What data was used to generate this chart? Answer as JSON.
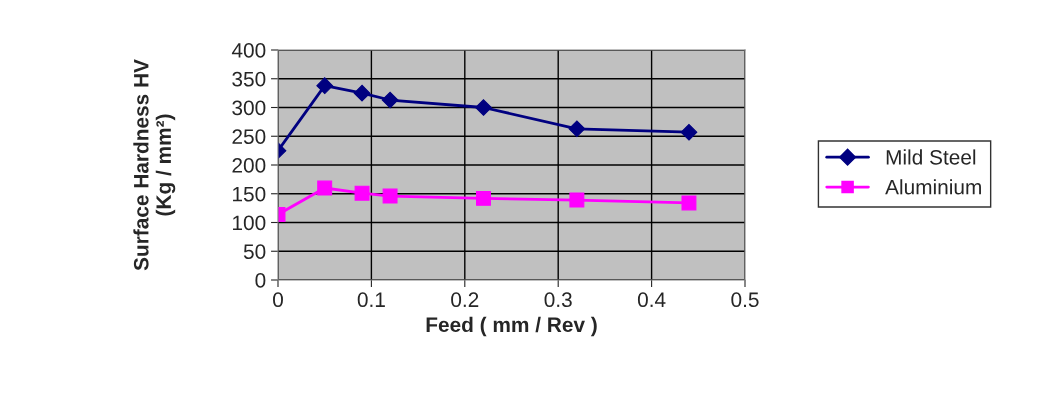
{
  "chart_data": {
    "type": "line",
    "xlabel": "Feed ( mm / Rev )",
    "ylabel": "Surface Hardness HV\n(Kg / mm²)",
    "x": [
      0,
      0.05,
      0.09,
      0.12,
      0.22,
      0.32,
      0.44
    ],
    "series": [
      {
        "name": "Mild Steel",
        "color": "#000080",
        "marker": "diamond",
        "values": [
          225,
          338,
          325,
          313,
          300,
          263,
          257
        ]
      },
      {
        "name": "Aluminium",
        "color": "#ff00ff",
        "marker": "square",
        "values": [
          114,
          160,
          151,
          146,
          142,
          139,
          134
        ]
      }
    ],
    "xlim": [
      0,
      0.5
    ],
    "xticks": [
      0,
      0.1,
      0.2,
      0.3,
      0.4,
      0.5
    ],
    "ylim": [
      0,
      400
    ],
    "yticks": [
      0,
      50,
      100,
      150,
      200,
      250,
      300,
      350,
      400
    ],
    "grid": true,
    "legend": "right",
    "line_style": "solid"
  }
}
